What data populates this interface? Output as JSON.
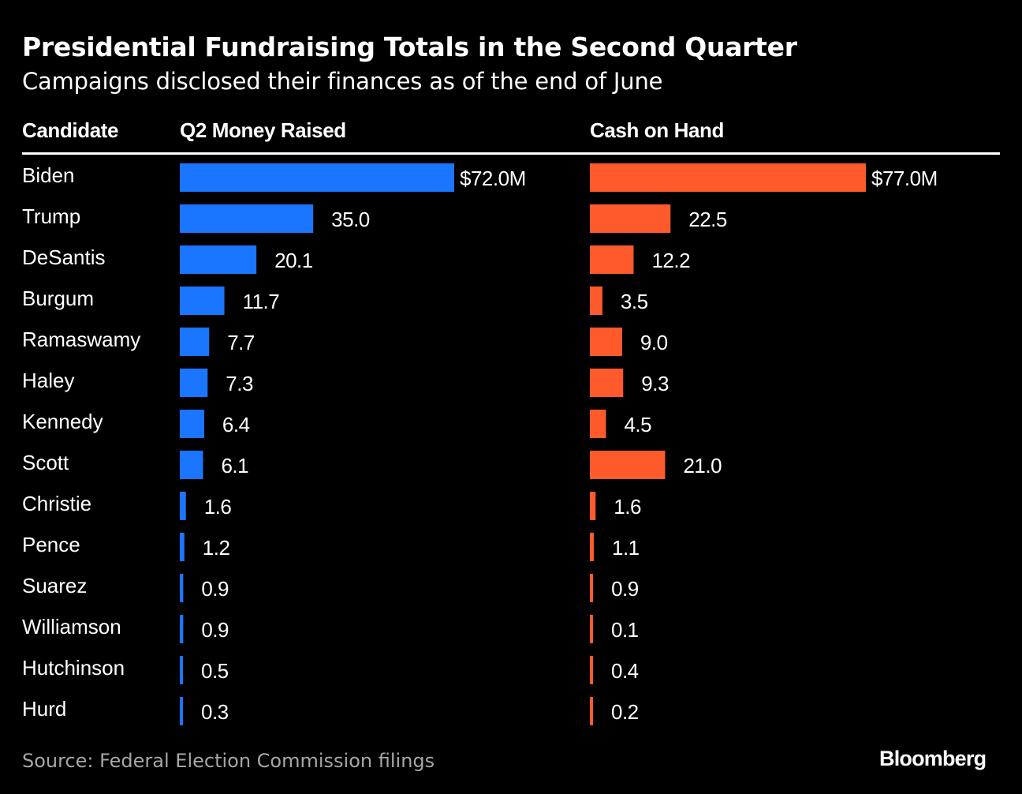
{
  "chart_data": {
    "type": "bar",
    "title": "Presidential Fundraising Totals in the Second Quarter",
    "subtitle": "Campaigns disclosed their finances as of the end of June",
    "category_header": "Candidate",
    "categories": [
      "Biden",
      "Trump",
      "DeSantis",
      "Burgum",
      "Ramaswamy",
      "Haley",
      "Kennedy",
      "Scott",
      "Christie",
      "Pence",
      "Suarez",
      "Williamson",
      "Hutchinson",
      "Hurd"
    ],
    "series": [
      {
        "name": "Q2 Money Raised",
        "color": "#1a75ff",
        "values": [
          72.0,
          35.0,
          20.1,
          11.7,
          7.7,
          7.3,
          6.4,
          6.1,
          1.6,
          1.2,
          0.9,
          0.9,
          0.5,
          0.3
        ],
        "labels": [
          "$72.0M",
          "35.0",
          "20.1",
          "11.7",
          "7.7",
          "7.3",
          "6.4",
          "6.1",
          "1.6",
          "1.2",
          "0.9",
          "0.9",
          "0.5",
          "0.3"
        ]
      },
      {
        "name": "Cash on Hand",
        "color": "#ff5a2c",
        "values": [
          77.0,
          22.5,
          12.2,
          3.5,
          9.0,
          9.3,
          4.5,
          21.0,
          1.6,
          1.1,
          0.9,
          0.1,
          0.4,
          0.2
        ],
        "labels": [
          "$77.0M",
          "22.5",
          "12.2",
          "3.5",
          "9.0",
          "9.3",
          "4.5",
          "21.0",
          "1.6",
          "1.1",
          "0.9",
          "0.1",
          "0.4",
          "0.2"
        ]
      }
    ],
    "source": "Source: Federal Election Commission filings",
    "brand": "Bloomberg"
  }
}
